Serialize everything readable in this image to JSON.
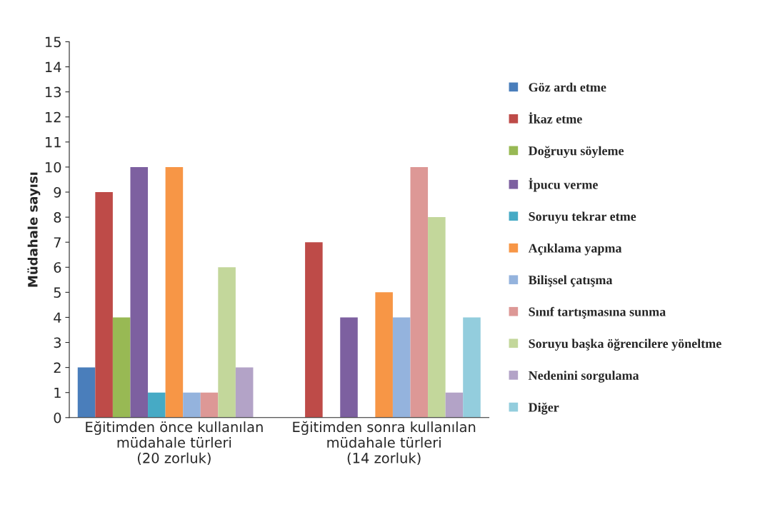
{
  "chart_data": {
    "type": "bar",
    "ylabel": "Müdahale sayısı",
    "categories": [
      "Eğitimden önce kullanılan\nmüdahale türleri\n(20 zorluk)",
      "Eğitimden sonra kullanılan\nmüdahale türleri\n(14 zorluk)"
    ],
    "series": [
      {
        "name": "Göz ardı etme",
        "color": "#4a7ebb",
        "values": [
          2,
          null
        ]
      },
      {
        "name": "İkaz etme",
        "color": "#be4b48",
        "values": [
          9,
          7
        ]
      },
      {
        "name": "Doğruyu söyleme",
        "color": "#98b954",
        "values": [
          4,
          null
        ]
      },
      {
        "name": "İpucu verme",
        "color": "#7d60a0",
        "values": [
          10,
          4
        ]
      },
      {
        "name": "Soruyu tekrar etme",
        "color": "#46aac5",
        "values": [
          1,
          null
        ]
      },
      {
        "name": "Açıklama yapma",
        "color": "#f79646",
        "values": [
          10,
          5
        ]
      },
      {
        "name": "Bilişsel çatışma",
        "color": "#94b3dd",
        "values": [
          1,
          4
        ]
      },
      {
        "name": "Sınıf tartışmasına sunma",
        "color": "#dd9896",
        "values": [
          1,
          10
        ]
      },
      {
        "name": "Soruyu başka öğrencilere yöneltme",
        "color": "#c3d79b",
        "values": [
          6,
          8
        ]
      },
      {
        "name": "Nedenini sorgulama",
        "color": "#b3a3c7",
        "values": [
          2,
          1
        ]
      },
      {
        "name": "Diğer",
        "color": "#93cddd",
        "values": [
          null,
          4
        ]
      }
    ],
    "ylim": [
      0,
      15
    ],
    "yticks": [
      0,
      1,
      2,
      3,
      4,
      5,
      6,
      7,
      8,
      9,
      10,
      11,
      12,
      13,
      14,
      15
    ],
    "grid": false,
    "legend": "right"
  }
}
